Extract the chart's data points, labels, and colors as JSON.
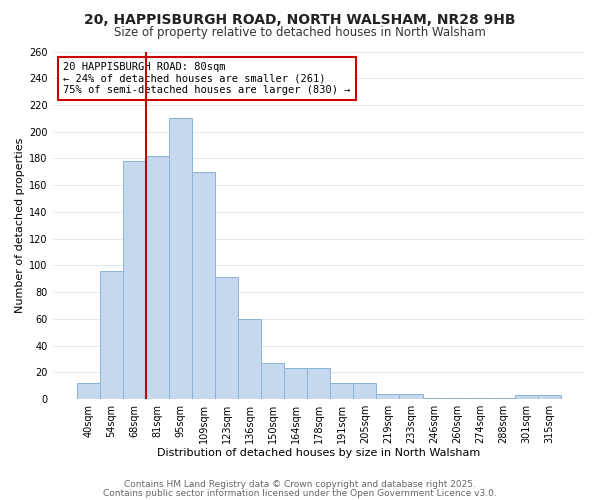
{
  "title": "20, HAPPISBURGH ROAD, NORTH WALSHAM, NR28 9HB",
  "subtitle": "Size of property relative to detached houses in North Walsham",
  "xlabel": "Distribution of detached houses by size in North Walsham",
  "ylabel": "Number of detached properties",
  "bar_color": "#c5d8ed",
  "bar_edge_color": "#8ab4d4",
  "background_color": "#ffffff",
  "grid_color": "#dde8f0",
  "categories": [
    "40sqm",
    "54sqm",
    "68sqm",
    "81sqm",
    "95sqm",
    "109sqm",
    "123sqm",
    "136sqm",
    "150sqm",
    "164sqm",
    "178sqm",
    "191sqm",
    "205sqm",
    "219sqm",
    "233sqm",
    "246sqm",
    "260sqm",
    "274sqm",
    "288sqm",
    "301sqm",
    "315sqm"
  ],
  "values": [
    12,
    96,
    178,
    182,
    210,
    170,
    91,
    60,
    27,
    23,
    23,
    12,
    12,
    4,
    4,
    1,
    1,
    1,
    1,
    3,
    3
  ],
  "ylim": [
    0,
    260
  ],
  "yticks": [
    0,
    20,
    40,
    60,
    80,
    100,
    120,
    140,
    160,
    180,
    200,
    220,
    240,
    260
  ],
  "vline_color": "#cc0000",
  "annotation_title": "20 HAPPISBURGH ROAD: 80sqm",
  "annotation_line1": "← 24% of detached houses are smaller (261)",
  "annotation_line2": "75% of semi-detached houses are larger (830) →",
  "annotation_box_edge": "#cc0000",
  "footer_line1": "Contains HM Land Registry data © Crown copyright and database right 2025.",
  "footer_line2": "Contains public sector information licensed under the Open Government Licence v3.0.",
  "title_fontsize": 10,
  "subtitle_fontsize": 8.5,
  "axis_label_fontsize": 8,
  "tick_fontsize": 7,
  "annotation_fontsize": 7.5,
  "footer_fontsize": 6.5
}
